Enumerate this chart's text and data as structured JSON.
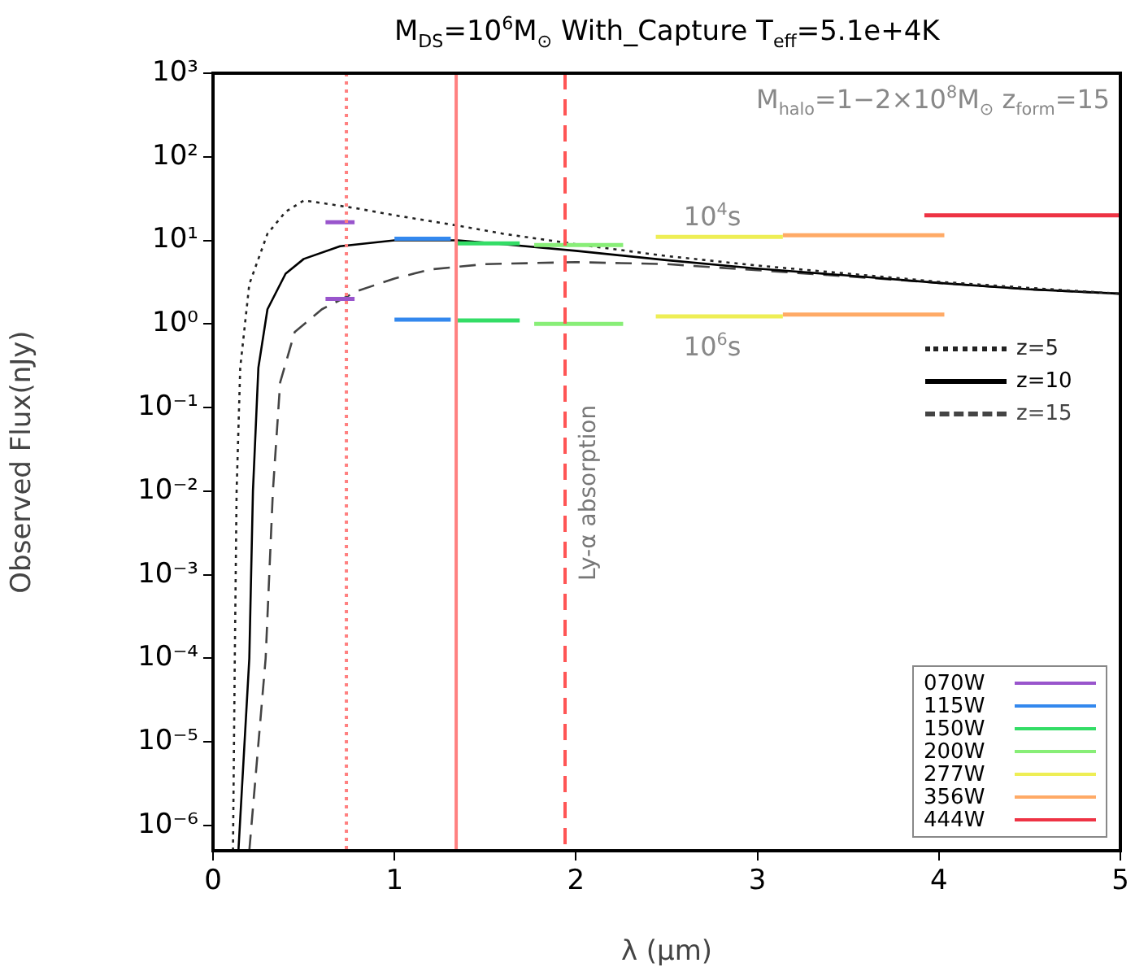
{
  "chart_data": {
    "type": "line",
    "title": "M$_{DS}$=10$^{6}$M$_{⊙}$   With_Capture     T$_{eff}$=5.1e+4K",
    "xlabel": "λ (μm)",
    "ylabel": "Observed Flux(nJy)",
    "log": "y",
    "grid": false,
    "legend": "bottom right",
    "marker": "none",
    "xlim": [
      0,
      5
    ],
    "xticks": [
      0,
      1,
      2,
      3,
      4,
      5
    ],
    "ylim": [
      5e-07,
      1000
    ],
    "yticks": [
      {
        "value": 1000,
        "label": "10³"
      },
      {
        "value": 100,
        "label": "10²"
      },
      {
        "value": 10,
        "label": "10¹"
      },
      {
        "value": 1,
        "label": "10⁰"
      },
      {
        "value": 0.1,
        "label": "10⁻¹"
      },
      {
        "value": 0.01,
        "label": "10⁻²"
      },
      {
        "value": 0.001,
        "label": "10⁻³"
      },
      {
        "value": 0.0001,
        "label": "10⁻⁴"
      },
      {
        "value": 1e-05,
        "label": "10⁻⁵"
      },
      {
        "value": 1e-06,
        "label": "10⁻⁶"
      }
    ],
    "series": [
      {
        "name": "z=5",
        "line_style": "dotted",
        "color": "#222222",
        "x": [
          0.11,
          0.12,
          0.13,
          0.15,
          0.2,
          0.3,
          0.4,
          0.5,
          0.6,
          0.8,
          1.0,
          1.35,
          1.6,
          2.0,
          2.5,
          3.0,
          3.5,
          4.0,
          4.5,
          5.0
        ],
        "values": [
          5e-07,
          0.0001,
          0.01,
          0.3,
          3,
          12,
          22,
          30,
          28,
          24,
          20,
          15,
          12,
          9,
          6.5,
          5,
          4,
          3.2,
          2.7,
          2.3
        ]
      },
      {
        "name": "z=10",
        "line_style": "solid",
        "color": "#000000",
        "x": [
          0.14,
          0.2,
          0.22,
          0.25,
          0.3,
          0.4,
          0.5,
          0.7,
          1.0,
          1.35,
          1.6,
          2.0,
          2.5,
          3.0,
          3.5,
          4.0,
          4.5,
          5.0
        ],
        "values": [
          5e-07,
          0.0001,
          0.01,
          0.3,
          1.5,
          4,
          6,
          8.5,
          10,
          10,
          9,
          7.5,
          5.8,
          4.6,
          3.8,
          3.1,
          2.6,
          2.3
        ]
      },
      {
        "name": "z=15",
        "line_style": "dashed",
        "color": "#444444",
        "x": [
          0.2,
          0.29,
          0.33,
          0.37,
          0.45,
          0.6,
          0.8,
          1.0,
          1.2,
          1.5,
          2.0,
          2.5,
          3.0,
          3.5,
          4.0,
          4.5,
          5.0
        ],
        "values": [
          5e-07,
          0.0001,
          0.01,
          0.2,
          0.8,
          1.5,
          2.5,
          3.5,
          4.5,
          5.2,
          5.5,
          5.2,
          4.4,
          3.7,
          3.1,
          2.6,
          2.3
        ]
      },
      {
        "name": "070W",
        "type": "line",
        "color": "#9955cc",
        "x": [
          0.62,
          0.78
        ],
        "values": [
          16.5,
          16.5
        ]
      },
      {
        "type": "line",
        "color": "#9955cc",
        "x": [
          0.62,
          0.78
        ],
        "values": [
          2,
          2
        ]
      },
      {
        "name": "115W",
        "type": "line",
        "color": "#3388ee",
        "x": [
          1.0,
          1.31
        ],
        "values": [
          10.5,
          10.5
        ]
      },
      {
        "type": "line",
        "color": "#3388ee",
        "x": [
          1.0,
          1.31
        ],
        "values": [
          1.13,
          1.13
        ]
      },
      {
        "name": "150W",
        "type": "line",
        "color": "#33dd66",
        "x": [
          1.34,
          1.69
        ],
        "values": [
          9.2,
          9.2
        ]
      },
      {
        "type": "line",
        "color": "#33dd66",
        "x": [
          1.34,
          1.69
        ],
        "values": [
          1.1,
          1.1
        ]
      },
      {
        "name": "200W",
        "type": "line",
        "color": "#88ee77",
        "x": [
          1.77,
          2.26
        ],
        "values": [
          8.8,
          8.8
        ]
      },
      {
        "type": "line",
        "color": "#88ee77",
        "x": [
          1.77,
          2.26
        ],
        "values": [
          1.0,
          1.0
        ]
      },
      {
        "name": "277W",
        "type": "line",
        "color": "#eeee55",
        "x": [
          2.44,
          3.14
        ],
        "values": [
          11,
          11
        ]
      },
      {
        "type": "line",
        "color": "#eeee55",
        "x": [
          2.44,
          3.14
        ],
        "values": [
          1.23,
          1.23
        ]
      },
      {
        "name": "356W",
        "type": "line",
        "color": "#ffaa66",
        "x": [
          3.14,
          4.03
        ],
        "values": [
          11.5,
          11.5
        ]
      },
      {
        "type": "line",
        "color": "#ffaa66",
        "x": [
          3.14,
          4.03
        ],
        "values": [
          1.3,
          1.3
        ]
      },
      {
        "name": "444W",
        "type": "line",
        "color": "#ee3344",
        "x": [
          3.92,
          5.0
        ],
        "values": [
          20,
          20
        ]
      }
    ],
    "ref_lines": [
      {
        "axis": "x",
        "value": 0.735,
        "label": null,
        "color": "#ff8080",
        "line_style": "dotted"
      },
      {
        "axis": "x",
        "value": 1.34,
        "label": null,
        "color": "#ff8080",
        "line_style": "solid"
      },
      {
        "axis": "x",
        "value": 1.94,
        "label": "Ly-α absorption",
        "color": "#ff5555",
        "line_style": "dashed"
      }
    ],
    "annotations": [
      "M$_{halo}$=1−2×10$^{8}$M$_{⊙}$ z$_{form}$=15",
      "10$^{4}$s",
      "10$^{6}$s"
    ]
  }
}
